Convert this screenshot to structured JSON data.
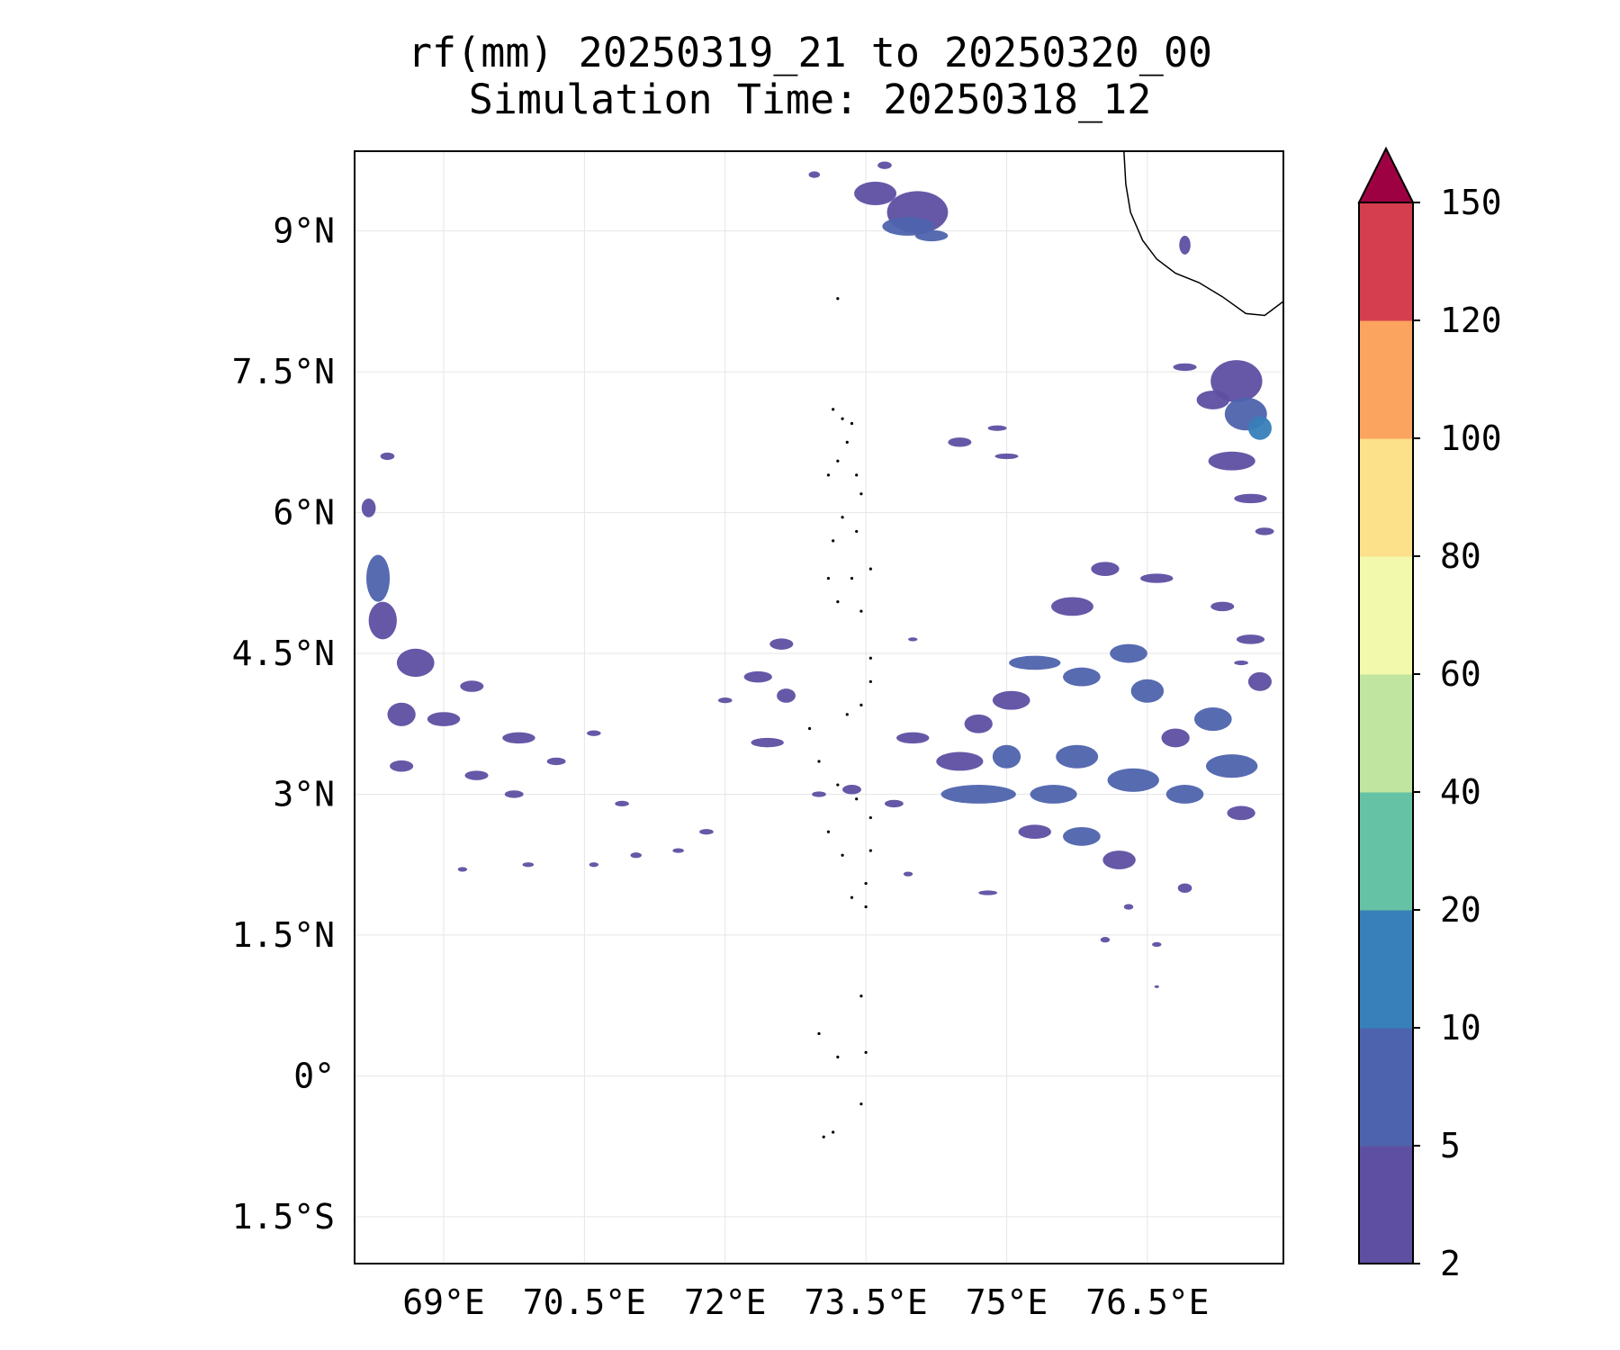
{
  "title": {
    "line1": "rf(mm) 20250319_21 to 20250320_00",
    "line2": "Simulation Time: 20250318_12"
  },
  "map": {
    "lon_range": [
      68.05,
      77.95
    ],
    "lat_range": [
      -2.0,
      9.85
    ],
    "lon_ticks": [
      {
        "value": 69.0,
        "label": "69°E"
      },
      {
        "value": 70.5,
        "label": "70.5°E"
      },
      {
        "value": 72.0,
        "label": "72°E"
      },
      {
        "value": 73.5,
        "label": "73.5°E"
      },
      {
        "value": 75.0,
        "label": "75°E"
      },
      {
        "value": 76.5,
        "label": "76.5°E"
      }
    ],
    "lat_ticks": [
      {
        "value": 9.0,
        "label": "9°N"
      },
      {
        "value": 7.5,
        "label": "7.5°N"
      },
      {
        "value": 6.0,
        "label": "6°N"
      },
      {
        "value": 4.5,
        "label": "4.5°N"
      },
      {
        "value": 3.0,
        "label": "3°N"
      },
      {
        "value": 1.5,
        "label": "1.5°N"
      },
      {
        "value": 0.0,
        "label": "0°"
      },
      {
        "value": -1.5,
        "label": "1.5°S"
      }
    ],
    "grid": true,
    "coastline": [
      [
        76.25,
        9.85
      ],
      [
        76.27,
        9.5
      ],
      [
        76.32,
        9.2
      ],
      [
        76.45,
        8.9
      ],
      [
        76.6,
        8.7
      ],
      [
        76.8,
        8.55
      ],
      [
        77.05,
        8.45
      ],
      [
        77.3,
        8.3
      ],
      [
        77.55,
        8.12
      ],
      [
        77.75,
        8.1
      ],
      [
        77.95,
        8.25
      ]
    ],
    "islands": [
      [
        73.2,
        8.28
      ],
      [
        73.15,
        7.1
      ],
      [
        73.25,
        7.0
      ],
      [
        73.35,
        6.95
      ],
      [
        73.3,
        6.75
      ],
      [
        73.2,
        6.55
      ],
      [
        73.4,
        6.4
      ],
      [
        73.45,
        6.2
      ],
      [
        73.1,
        6.4
      ],
      [
        73.25,
        5.95
      ],
      [
        73.15,
        5.7
      ],
      [
        73.4,
        5.8
      ],
      [
        73.55,
        5.4
      ],
      [
        73.35,
        5.3
      ],
      [
        73.1,
        5.3
      ],
      [
        73.2,
        5.05
      ],
      [
        73.45,
        4.95
      ],
      [
        73.55,
        4.45
      ],
      [
        73.55,
        4.2
      ],
      [
        73.45,
        3.95
      ],
      [
        73.3,
        3.85
      ],
      [
        72.9,
        3.7
      ],
      [
        73.0,
        3.35
      ],
      [
        73.2,
        3.1
      ],
      [
        73.4,
        2.95
      ],
      [
        73.55,
        2.75
      ],
      [
        73.1,
        2.6
      ],
      [
        73.55,
        2.4
      ],
      [
        73.25,
        2.35
      ],
      [
        73.5,
        2.05
      ],
      [
        73.35,
        1.9
      ],
      [
        73.5,
        1.8
      ],
      [
        73.45,
        0.85
      ],
      [
        73.0,
        0.45
      ],
      [
        73.5,
        0.25
      ],
      [
        73.2,
        0.2
      ],
      [
        73.45,
        -0.3
      ],
      [
        73.15,
        -0.6
      ],
      [
        73.05,
        -0.65
      ]
    ],
    "rain_cells": [
      [
        73.6,
        9.4,
        0.45,
        0.25,
        0
      ],
      [
        74.05,
        9.2,
        0.65,
        0.45,
        0
      ],
      [
        73.95,
        9.05,
        0.55,
        0.2,
        1
      ],
      [
        74.2,
        8.95,
        0.35,
        0.12,
        1
      ],
      [
        72.95,
        9.6,
        0.12,
        0.07,
        0
      ],
      [
        73.7,
        9.7,
        0.15,
        0.08,
        0
      ],
      [
        76.9,
        8.85,
        0.12,
        0.2,
        0
      ],
      [
        77.45,
        7.4,
        0.55,
        0.45,
        0
      ],
      [
        77.55,
        7.05,
        0.45,
        0.35,
        1
      ],
      [
        77.2,
        7.2,
        0.35,
        0.2,
        0
      ],
      [
        77.7,
        6.9,
        0.25,
        0.25,
        2
      ],
      [
        77.4,
        6.55,
        0.5,
        0.2,
        0
      ],
      [
        77.6,
        6.15,
        0.35,
        0.1,
        0
      ],
      [
        77.75,
        5.8,
        0.2,
        0.08,
        0
      ],
      [
        76.9,
        7.55,
        0.25,
        0.08,
        0
      ],
      [
        74.5,
        6.75,
        0.25,
        0.1,
        0
      ],
      [
        74.9,
        6.9,
        0.2,
        0.06,
        0
      ],
      [
        75.0,
        6.6,
        0.25,
        0.06,
        0
      ],
      [
        68.3,
        5.3,
        0.25,
        0.5,
        1
      ],
      [
        68.35,
        4.85,
        0.3,
        0.4,
        0
      ],
      [
        68.7,
        4.4,
        0.4,
        0.3,
        0
      ],
      [
        68.55,
        3.85,
        0.3,
        0.25,
        0
      ],
      [
        69.0,
        3.8,
        0.35,
        0.15,
        0
      ],
      [
        69.3,
        4.15,
        0.25,
        0.12,
        0
      ],
      [
        68.55,
        3.3,
        0.25,
        0.12,
        0
      ],
      [
        69.35,
        3.2,
        0.25,
        0.1,
        0
      ],
      [
        68.2,
        6.05,
        0.15,
        0.2,
        0
      ],
      [
        68.4,
        6.6,
        0.15,
        0.08,
        0
      ],
      [
        69.8,
        3.6,
        0.35,
        0.12,
        0
      ],
      [
        70.2,
        3.35,
        0.2,
        0.08,
        0
      ],
      [
        70.6,
        3.65,
        0.15,
        0.06,
        0
      ],
      [
        70.9,
        2.9,
        0.15,
        0.06,
        0
      ],
      [
        69.75,
        3.0,
        0.2,
        0.08,
        0
      ],
      [
        72.6,
        4.6,
        0.25,
        0.12,
        0
      ],
      [
        72.35,
        4.25,
        0.3,
        0.12,
        0
      ],
      [
        72.45,
        3.55,
        0.35,
        0.1,
        0
      ],
      [
        72.65,
        4.05,
        0.2,
        0.15,
        0
      ],
      [
        72.0,
        4.0,
        0.15,
        0.06,
        0
      ],
      [
        71.8,
        2.6,
        0.15,
        0.06,
        0
      ],
      [
        71.05,
        2.35,
        0.12,
        0.06,
        0
      ],
      [
        71.5,
        2.4,
        0.12,
        0.05,
        0
      ],
      [
        69.9,
        2.25,
        0.12,
        0.05,
        0
      ],
      [
        70.6,
        2.25,
        0.1,
        0.05,
        0
      ],
      [
        69.2,
        2.2,
        0.1,
        0.05,
        0
      ],
      [
        74.5,
        3.35,
        0.5,
        0.2,
        0
      ],
      [
        74.7,
        3.0,
        0.8,
        0.2,
        1
      ],
      [
        74.0,
        3.6,
        0.35,
        0.12,
        0
      ],
      [
        75.0,
        3.4,
        0.3,
        0.25,
        1
      ],
      [
        75.5,
        3.0,
        0.5,
        0.2,
        1
      ],
      [
        75.3,
        2.6,
        0.35,
        0.15,
        0
      ],
      [
        75.8,
        2.55,
        0.4,
        0.2,
        1
      ],
      [
        76.2,
        2.3,
        0.35,
        0.2,
        0
      ],
      [
        75.75,
        3.4,
        0.45,
        0.25,
        1
      ],
      [
        76.35,
        3.15,
        0.55,
        0.25,
        1
      ],
      [
        76.9,
        3.0,
        0.4,
        0.2,
        1
      ],
      [
        77.4,
        3.3,
        0.55,
        0.25,
        1
      ],
      [
        77.2,
        3.8,
        0.4,
        0.25,
        1
      ],
      [
        76.8,
        3.6,
        0.3,
        0.2,
        0
      ],
      [
        75.3,
        4.4,
        0.55,
        0.15,
        1
      ],
      [
        75.8,
        4.25,
        0.4,
        0.2,
        1
      ],
      [
        76.3,
        4.5,
        0.4,
        0.2,
        1
      ],
      [
        76.5,
        4.1,
        0.35,
        0.25,
        1
      ],
      [
        75.05,
        4.0,
        0.4,
        0.2,
        0
      ],
      [
        74.7,
        3.75,
        0.3,
        0.2,
        0
      ],
      [
        75.7,
        5.0,
        0.45,
        0.2,
        0
      ],
      [
        76.05,
        5.4,
        0.3,
        0.15,
        0
      ],
      [
        76.6,
        5.3,
        0.35,
        0.1,
        0
      ],
      [
        77.3,
        5.0,
        0.25,
        0.1,
        0
      ],
      [
        77.6,
        4.65,
        0.3,
        0.1,
        0
      ],
      [
        77.7,
        4.2,
        0.25,
        0.2,
        0
      ],
      [
        77.5,
        2.8,
        0.3,
        0.15,
        0
      ],
      [
        76.9,
        2.0,
        0.15,
        0.1,
        0
      ],
      [
        76.3,
        1.8,
        0.1,
        0.06,
        0
      ],
      [
        76.05,
        1.45,
        0.1,
        0.06,
        0
      ],
      [
        76.6,
        1.4,
        0.1,
        0.05,
        0
      ],
      [
        74.8,
        1.95,
        0.2,
        0.05,
        0
      ],
      [
        73.8,
        2.9,
        0.2,
        0.08,
        0
      ],
      [
        73.95,
        2.15,
        0.1,
        0.05,
        0
      ],
      [
        76.6,
        0.95,
        0.05,
        0.03,
        0
      ],
      [
        77.5,
        4.4,
        0.15,
        0.05,
        0
      ],
      [
        73.35,
        3.05,
        0.2,
        0.1,
        0
      ],
      [
        73.0,
        3.0,
        0.15,
        0.06,
        0
      ],
      [
        74.0,
        4.65,
        0.1,
        0.04,
        0
      ]
    ]
  },
  "colorbar": {
    "levels": [
      2,
      5,
      10,
      20,
      40,
      60,
      80,
      100,
      120,
      150
    ],
    "tick_labels": [
      "2",
      "5",
      "10",
      "20",
      "40",
      "60",
      "80",
      "100",
      "120",
      "150"
    ],
    "colors": [
      "#5e4fa2",
      "#4e63ad",
      "#3880b9",
      "#66c2a5",
      "#bfe5a0",
      "#f2f9ad",
      "#fde08a",
      "#fba45f",
      "#d53e4f"
    ],
    "extend_color": "#9e0142"
  }
}
